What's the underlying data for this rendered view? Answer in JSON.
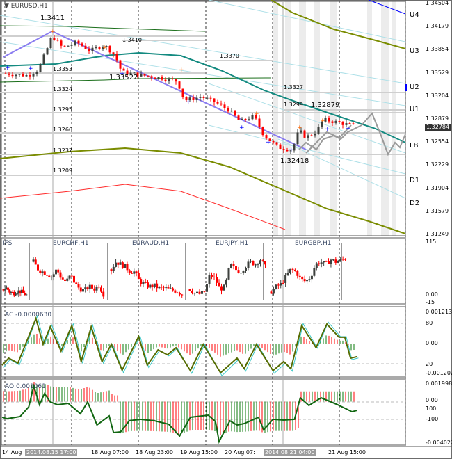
{
  "chart": {
    "symbol_title": "EURUSD,H1",
    "current_price": "1.32784",
    "price_axis": [
      "1.34504",
      "1.34179",
      "1.33854",
      "1.33529",
      "1.33204",
      "1.32879",
      "1.32554",
      "1.32229",
      "1.31904",
      "1.31579",
      "1.31249"
    ],
    "levels": [
      {
        "name": "U4"
      },
      {
        "name": "U3"
      },
      {
        "name": "U2"
      },
      {
        "name": "U1"
      },
      {
        "name": "LB"
      },
      {
        "name": "D1"
      },
      {
        "name": "D2"
      }
    ],
    "price_labels": [
      "1.3411",
      "1.3410",
      "1.3353",
      "1.33522",
      "1.3324",
      "1.3370",
      "1.3327",
      "1.3299",
      "1.32879",
      "1.3295",
      "1.3266",
      "1.3237",
      "1.3209",
      "1.32418"
    ],
    "key_prices": [
      1.3352,
      1.3349,
      1.3357,
      1.3392,
      1.3405,
      1.3388,
      1.3396,
      1.3384,
      1.3392,
      1.3378,
      1.3354,
      1.335,
      1.3346,
      1.3341,
      1.3314,
      1.3319,
      1.3311,
      1.33,
      1.3284,
      1.3292,
      1.3264,
      1.3248,
      1.3244,
      1.3272,
      1.3262,
      1.327,
      1.3287,
      1.3284,
      1.328,
      1.3278
    ],
    "colors": {
      "bull": "#3d403d",
      "bear": "#ff0000",
      "ma": "#138a80",
      "band": "#7a8c00",
      "trend": "#8a7cf0",
      "lower_red": "#ff2a2a"
    }
  },
  "ifs": {
    "label": "IFS",
    "axis": [
      "115",
      "0.00",
      "-15"
    ],
    "pairs": [
      {
        "label": "",
        "closes": [
          20,
          22,
          14,
          12,
          15,
          16,
          12,
          8
        ]
      },
      {
        "label": "EURCHF,H1",
        "closes": [
          75,
          60,
          55,
          50,
          45,
          60,
          42,
          35,
          48,
          30,
          20,
          18,
          25,
          20,
          28,
          10
        ]
      },
      {
        "label": "EURAUD,H1",
        "closes": [
          60,
          75,
          70,
          65,
          55,
          55,
          35,
          30,
          25,
          28,
          22,
          23,
          20,
          18,
          15,
          10
        ]
      },
      {
        "label": "EURJPY,H1",
        "closes": [
          20,
          12,
          10,
          15,
          50,
          40,
          20,
          25,
          70,
          60,
          55,
          65,
          75,
          70,
          80,
          65
        ]
      },
      {
        "label": "EURGBP,H1",
        "closes": [
          15,
          25,
          30,
          45,
          60,
          55,
          40,
          35,
          45,
          70,
          75,
          70,
          80,
          75,
          78,
          82
        ]
      }
    ]
  },
  "ac": {
    "label": "AC -0.0000630",
    "axis": [
      "0.001213",
      "80",
      "0.00",
      "20",
      "-0.001202"
    ],
    "values": [
      -0.00089,
      -0.0006,
      -0.0008,
      0.00103,
      -3e-05,
      0.00069,
      -0.00031,
      0.00074,
      -0.00074,
      0.00069,
      -0.00074,
      -3e-05,
      -0.00109,
      0.00029,
      -0.00089,
      -0.00026,
      -0.00046,
      -0.00017,
      -0.00111,
      -3e-05,
      -0.0012,
      -0.0006,
      -0.00103,
      -3e-05,
      -0.00111,
      -0.00074,
      -0.00103,
      0.00074,
      -0.00017,
      0.0008,
      0.00026,
      0.00026,
      -0.0006,
      -0.00054
    ]
  },
  "ao": {
    "label": "AO 0.001061",
    "axis": [
      "0.001998",
      "0.00",
      "100",
      "-100",
      "-0.004022"
    ],
    "values": [
      -0.00152,
      -0.00166,
      -0.00145,
      -0.00051,
      0.00152,
      0.00085,
      -0.0003,
      0.00078,
      -3e-05,
      -0.0003,
      -0.00017,
      -0.00118,
      -3e-05,
      -0.00227,
      -0.00139,
      -0.00301,
      -0.00294,
      -0.00186,
      -0.00172,
      -0.00186,
      -0.0022,
      -0.00335,
      -0.00152,
      -0.00132,
      -0.00193,
      -0.00389,
      -0.00186,
      -0.00227,
      -0.00213,
      -0.00152,
      -0.00274,
      -0.00172,
      -0.00179,
      -0.00172,
      0.00037,
      -0.00037,
      0.00037,
      -0.0003,
      -0.00098,
      -0.00085
    ]
  },
  "time_axis": {
    "labels": [
      "14 Aug",
      "2014.08.15 17:00",
      "18 Aug 07:00",
      "18 Aug 23:00",
      "19 Aug 15:00",
      "20 Aug 07:",
      "2014.08.21 04:00",
      "21 Aug 15:00"
    ]
  }
}
